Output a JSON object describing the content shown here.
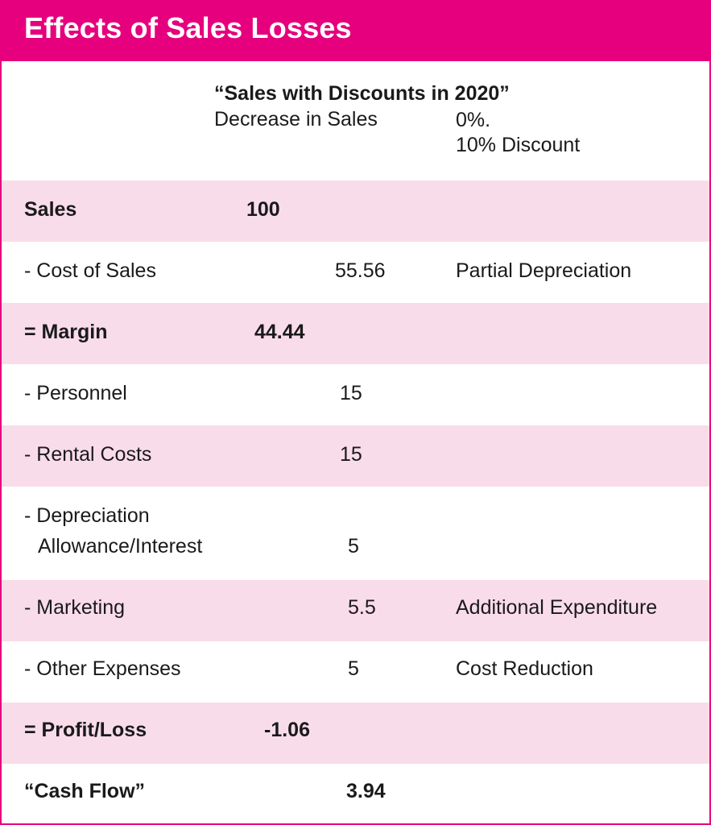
{
  "header": {
    "title": "Effects of Sales Losses"
  },
  "intro": {
    "subtitle": "“Sales with Discounts in 2020”",
    "column_a": "Decrease in Sales",
    "column_b_line1": "0%.",
    "column_b_line2": "10% Discount"
  },
  "rows": [
    {
      "label": "Sales",
      "value_primary": "100",
      "value_secondary": "",
      "note": "",
      "bold": true,
      "shaded": true
    },
    {
      "label": "- Cost of Sales",
      "value_primary": "",
      "value_secondary": "55.56",
      "note": "Partial Depreciation",
      "bold": false,
      "shaded": false
    },
    {
      "label": "= Margin",
      "value_primary": "44.44",
      "value_secondary": "",
      "note": "",
      "bold": true,
      "shaded": true
    },
    {
      "label": "- Personnel",
      "value_primary": "",
      "value_secondary": "15",
      "note": "",
      "bold": false,
      "shaded": false
    },
    {
      "label": "- Rental Costs",
      "value_primary": "",
      "value_secondary": "15",
      "note": "",
      "bold": false,
      "shaded": true
    },
    {
      "label_line1": "- Depreciation",
      "label_line2": "Allowance/Interest",
      "value_primary": "",
      "value_secondary": "5",
      "note": "",
      "bold": false,
      "shaded": false
    },
    {
      "label": "- Marketing",
      "value_primary": "",
      "value_secondary": "5.5",
      "note": "Additional Expenditure",
      "bold": false,
      "shaded": true
    },
    {
      "label": "- Other Expenses",
      "value_primary": "",
      "value_secondary": "5",
      "note": "Cost Reduction",
      "bold": false,
      "shaded": false
    },
    {
      "label": "= Profit/Loss",
      "value_primary": "-1.06",
      "value_secondary": "",
      "note": "",
      "bold": true,
      "shaded": true
    },
    {
      "label": "“Cash Flow”",
      "value_primary": "",
      "value_secondary": "3.94",
      "note": "",
      "bold": true,
      "shaded": false
    }
  ],
  "colors": {
    "accent": "#e6007e",
    "row_shade": "#f9dcea",
    "text": "#1a1a1a"
  }
}
